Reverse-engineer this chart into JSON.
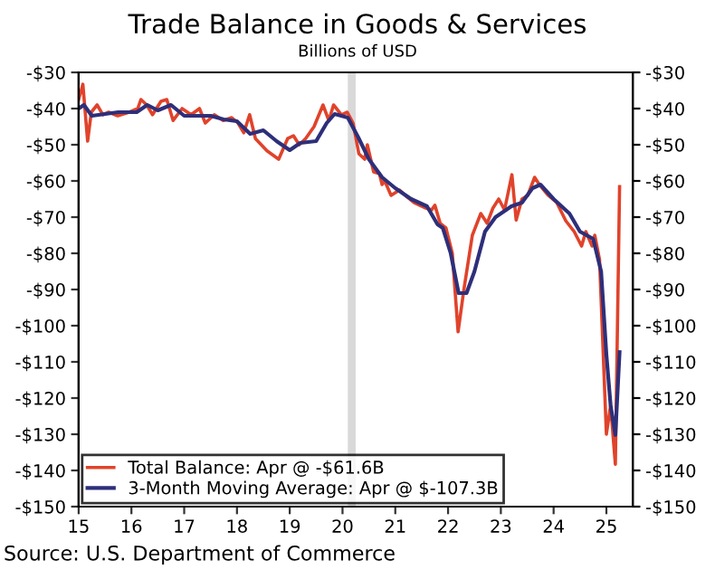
{
  "chart_data": {
    "type": "line",
    "title": "Trade Balance in Goods & Services",
    "subtitle": "Billions of USD",
    "annotations": [
      "Source: U.S. Department of Commerce"
    ],
    "xlim": [
      15,
      25.5
    ],
    "xticks": [
      15,
      16,
      17,
      18,
      19,
      20,
      21,
      22,
      23,
      24,
      25
    ],
    "ylim": [
      -150,
      -30
    ],
    "yticks": [
      {
        "value": -150,
        "label": "-$150"
      },
      {
        "value": -140,
        "label": "-$140"
      },
      {
        "value": -130,
        "label": "-$130"
      },
      {
        "value": -120,
        "label": "-$120"
      },
      {
        "value": -110,
        "label": "-$110"
      },
      {
        "value": -100,
        "label": "-$100"
      },
      {
        "value": -90,
        "label": "-$90"
      },
      {
        "value": -80,
        "label": "-$80"
      },
      {
        "value": -70,
        "label": "-$70"
      },
      {
        "value": -60,
        "label": "-$60"
      },
      {
        "value": -50,
        "label": "-$50"
      },
      {
        "value": -40,
        "label": "-$40"
      },
      {
        "value": -30,
        "label": "-$30"
      }
    ],
    "y2lim": [
      -150,
      -30
    ],
    "y2ticks": [
      {
        "value": -150,
        "label": "-$150"
      },
      {
        "value": -140,
        "label": "-$140"
      },
      {
        "value": -130,
        "label": "-$130"
      },
      {
        "value": -120,
        "label": "-$120"
      },
      {
        "value": -110,
        "label": "-$110"
      },
      {
        "value": -100,
        "label": "-$100"
      },
      {
        "value": -90,
        "label": "-$90"
      },
      {
        "value": -80,
        "label": "-$80"
      },
      {
        "value": -70,
        "label": "-$70"
      },
      {
        "value": -60,
        "label": "-$60"
      },
      {
        "value": -50,
        "label": "-$50"
      },
      {
        "value": -40,
        "label": "-$40"
      },
      {
        "value": -30,
        "label": "-$30"
      }
    ],
    "bands": [
      {
        "axis": "x",
        "from": 20.1,
        "to": 20.25,
        "color": "#d9d9d9"
      }
    ],
    "legend": "bottom left",
    "grid": false,
    "series": [
      {
        "name": "Total Balance: Apr @ -$61.6B",
        "color": "#e0432b",
        "x": [
          15.0,
          15.08,
          15.17,
          15.24,
          15.35,
          15.46,
          15.57,
          15.74,
          15.96,
          16.12,
          16.18,
          16.29,
          16.4,
          16.56,
          16.67,
          16.79,
          16.96,
          17.13,
          17.29,
          17.4,
          17.57,
          17.74,
          17.9,
          18.02,
          18.13,
          18.24,
          18.35,
          18.46,
          18.57,
          18.79,
          18.96,
          19.07,
          19.18,
          19.3,
          19.46,
          19.63,
          19.74,
          19.83,
          19.98,
          20.09,
          20.2,
          20.31,
          20.42,
          20.47,
          20.59,
          20.7,
          20.75,
          20.8,
          20.92,
          21.08,
          21.19,
          21.36,
          21.58,
          21.69,
          21.75,
          21.85,
          21.96,
          22.08,
          22.19,
          22.3,
          22.46,
          22.62,
          22.74,
          22.85,
          22.96,
          23.07,
          23.21,
          23.29,
          23.4,
          23.51,
          23.64,
          23.73,
          23.9,
          24.06,
          24.23,
          24.39,
          24.53,
          24.61,
          24.73,
          24.78,
          24.87,
          25.0,
          25.08,
          25.17,
          25.25
        ],
        "values": [
          -37.5,
          -33.3,
          -49,
          -41,
          -39,
          -41.7,
          -41,
          -42,
          -41,
          -40,
          -37.5,
          -39,
          -41.7,
          -38,
          -37.5,
          -43.3,
          -40,
          -41.7,
          -40,
          -44,
          -41.7,
          -43.3,
          -42.5,
          -44,
          -46.7,
          -41.7,
          -48.3,
          -50,
          -51.7,
          -54,
          -48.3,
          -47.5,
          -50,
          -48.3,
          -45,
          -39,
          -43.3,
          -39,
          -41.7,
          -41,
          -44,
          -52.5,
          -54,
          -50,
          -57.5,
          -58,
          -61,
          -60,
          -64,
          -62.5,
          -64,
          -66,
          -67.5,
          -68,
          -66.7,
          -71.7,
          -73,
          -80,
          -101.7,
          -90,
          -75,
          -69,
          -71.7,
          -67.5,
          -65,
          -68,
          -58.3,
          -70.8,
          -65,
          -64,
          -59,
          -61,
          -64,
          -66,
          -71,
          -74,
          -78,
          -74,
          -78,
          -75,
          -81.7,
          -130,
          -122,
          -138.3,
          -61.6
        ]
      },
      {
        "name": "3-Month Moving Average: Apr @ $-107.3B",
        "color": "#2e2f7a",
        "x": [
          15.0,
          15.1,
          15.25,
          15.5,
          15.75,
          16.1,
          16.3,
          16.5,
          16.75,
          17.0,
          17.25,
          17.5,
          17.75,
          18.0,
          18.25,
          18.5,
          18.75,
          19.0,
          19.2,
          19.5,
          19.7,
          19.85,
          20.1,
          20.3,
          20.5,
          20.75,
          21.0,
          21.3,
          21.6,
          21.8,
          21.9,
          22.05,
          22.2,
          22.35,
          22.5,
          22.7,
          22.9,
          23.2,
          23.4,
          23.6,
          23.75,
          24.0,
          24.3,
          24.5,
          24.75,
          24.9,
          25.0,
          25.08,
          25.17,
          25.25
        ],
        "values": [
          -40,
          -39,
          -42,
          -41.5,
          -41,
          -41,
          -39,
          -40.5,
          -39,
          -42,
          -42,
          -42,
          -43,
          -43.5,
          -47,
          -46,
          -49,
          -51.5,
          -49.5,
          -49,
          -44,
          -41.5,
          -42.5,
          -48,
          -54,
          -59,
          -62,
          -65,
          -67,
          -72,
          -73,
          -80,
          -91,
          -91,
          -85,
          -74,
          -70,
          -67,
          -66,
          -62,
          -61,
          -65,
          -69,
          -74,
          -76,
          -85,
          -108,
          -122,
          -130.2,
          -107.3
        ]
      }
    ]
  }
}
